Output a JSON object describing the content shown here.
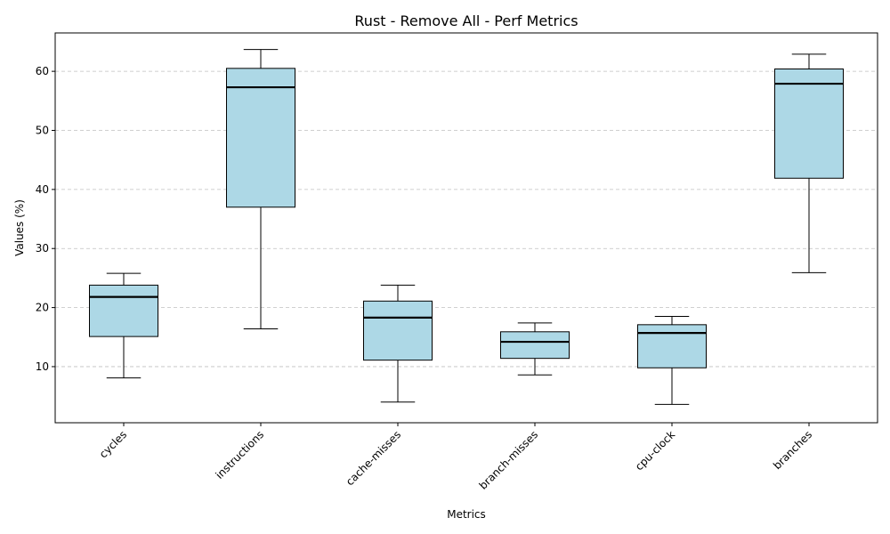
{
  "chart_data": {
    "type": "boxplot",
    "title": "Rust - Remove All - Perf Metrics",
    "xlabel": "Metrics",
    "ylabel": "Values (%)",
    "ylim": [
      0.5,
      66.5
    ],
    "yticks": [
      10,
      20,
      30,
      40,
      50,
      60
    ],
    "grid": "y-dashed",
    "colors": {
      "box_fill": "#add8e6",
      "edge": "#000000",
      "median": "#000000",
      "grid": "#c0c0c0"
    },
    "categories": [
      "cycles",
      "instructions",
      "cache-misses",
      "branch-misses",
      "cpu-clock",
      "branches"
    ],
    "boxes": [
      {
        "whisker_low": 8.1,
        "q1": 15.1,
        "median": 21.8,
        "q3": 23.8,
        "whisker_high": 25.8
      },
      {
        "whisker_low": 16.4,
        "q1": 37.0,
        "median": 57.3,
        "q3": 60.5,
        "whisker_high": 63.7
      },
      {
        "whisker_low": 4.0,
        "q1": 11.1,
        "median": 18.3,
        "q3": 21.1,
        "whisker_high": 23.8
      },
      {
        "whisker_low": 8.6,
        "q1": 11.4,
        "median": 14.2,
        "q3": 15.9,
        "whisker_high": 17.4
      },
      {
        "whisker_low": 3.6,
        "q1": 9.8,
        "median": 15.7,
        "q3": 17.1,
        "whisker_high": 18.5
      },
      {
        "whisker_low": 25.9,
        "q1": 41.9,
        "median": 57.9,
        "q3": 60.4,
        "whisker_high": 62.9
      }
    ]
  }
}
